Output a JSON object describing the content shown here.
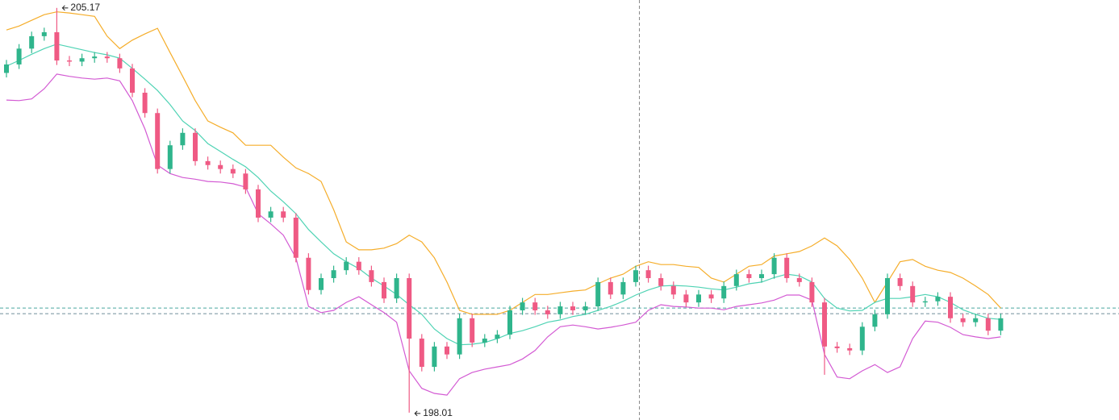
{
  "chart_data": {
    "type": "candlestick",
    "ylim": [
      197.88,
      205.31
    ],
    "up_color": "#2fb58c",
    "down_color": "#ef5a84",
    "open": [
      204.02,
      204.17,
      204.45,
      204.67,
      204.74,
      204.24,
      204.22,
      204.28,
      204.31,
      204.28,
      204.1,
      203.67,
      203.31,
      202.32,
      202.74,
      202.96,
      202.46,
      202.39,
      202.32,
      202.24,
      201.96,
      201.46,
      201.57,
      201.46,
      200.75,
      200.18,
      200.39,
      200.53,
      200.68,
      200.53,
      200.32,
      200.03,
      200.39,
      199.32,
      198.82,
      199.18,
      199.04,
      199.68,
      199.25,
      199.32,
      199.39,
      199.82,
      199.96,
      199.82,
      199.75,
      199.89,
      199.82,
      199.89,
      200.32,
      200.1,
      200.32,
      200.53,
      200.39,
      200.25,
      200.1,
      199.96,
      200.1,
      200.03,
      200.25,
      200.46,
      200.39,
      200.46,
      200.75,
      200.39,
      200.32,
      199.96,
      199.18,
      199.15,
      199.11,
      199.53,
      199.75,
      200.39,
      200.25,
      199.96,
      199.98,
      200.06,
      199.68,
      199.61,
      199.68,
      199.46
    ],
    "high": [
      204.25,
      204.53,
      204.75,
      204.82,
      205.17,
      204.32,
      204.36,
      204.39,
      204.39,
      204.36,
      204.18,
      203.75,
      203.39,
      202.82,
      203.04,
      203.04,
      202.54,
      202.47,
      202.4,
      202.32,
      202.04,
      201.65,
      201.65,
      201.54,
      200.83,
      200.47,
      200.61,
      200.76,
      200.76,
      200.61,
      200.4,
      200.47,
      200.47,
      199.4,
      199.26,
      199.26,
      199.76,
      199.76,
      199.4,
      199.47,
      199.9,
      200.04,
      200.04,
      199.9,
      199.97,
      199.97,
      199.97,
      200.4,
      200.4,
      200.4,
      200.61,
      200.61,
      200.47,
      200.33,
      200.18,
      200.18,
      200.18,
      200.33,
      200.54,
      200.54,
      200.54,
      200.83,
      200.83,
      200.47,
      200.4,
      200.04,
      199.26,
      199.23,
      199.61,
      199.83,
      200.47,
      200.47,
      200.33,
      200.06,
      200.14,
      200.14,
      199.76,
      199.76,
      199.76,
      199.76
    ],
    "low": [
      203.94,
      204.09,
      204.37,
      204.59,
      204.16,
      204.14,
      204.14,
      204.2,
      204.2,
      204.02,
      203.59,
      203.23,
      202.24,
      202.24,
      202.66,
      202.38,
      202.31,
      202.24,
      202.16,
      201.88,
      201.38,
      201.38,
      201.38,
      200.67,
      200.1,
      200.1,
      200.31,
      200.45,
      200.45,
      200.24,
      199.95,
      199.95,
      198.01,
      198.74,
      198.74,
      198.96,
      198.96,
      199.17,
      199.17,
      199.24,
      199.31,
      199.74,
      199.74,
      199.67,
      199.67,
      199.74,
      199.74,
      199.81,
      200.02,
      200.02,
      200.24,
      200.31,
      200.17,
      200.02,
      199.88,
      199.88,
      199.95,
      199.95,
      200.17,
      200.31,
      200.31,
      200.38,
      200.31,
      200.24,
      199.88,
      198.68,
      199.07,
      199.03,
      199.03,
      199.45,
      199.67,
      200.17,
      199.88,
      199.88,
      199.9,
      199.6,
      199.53,
      199.53,
      199.38,
      199.38
    ],
    "close": [
      204.17,
      204.45,
      204.67,
      204.74,
      204.24,
      204.22,
      204.28,
      204.31,
      204.28,
      204.1,
      203.67,
      203.31,
      202.32,
      202.74,
      202.96,
      202.46,
      202.39,
      202.32,
      202.24,
      201.96,
      201.46,
      201.57,
      201.46,
      200.75,
      200.18,
      200.39,
      200.53,
      200.68,
      200.53,
      200.32,
      200.03,
      200.39,
      199.32,
      198.82,
      199.18,
      199.04,
      199.68,
      199.25,
      199.32,
      199.39,
      199.82,
      199.96,
      199.82,
      199.75,
      199.89,
      199.82,
      199.89,
      200.32,
      200.1,
      200.32,
      200.53,
      200.39,
      200.25,
      200.1,
      199.96,
      200.1,
      200.03,
      200.25,
      200.46,
      200.39,
      200.46,
      200.75,
      200.39,
      200.32,
      199.96,
      199.18,
      199.15,
      199.11,
      199.53,
      199.75,
      200.39,
      200.25,
      199.96,
      199.98,
      200.06,
      199.68,
      199.61,
      199.68,
      199.46,
      199.68
    ],
    "overlays": [
      {
        "color": "#f5ad2a",
        "values": [
          204.78,
          204.85,
          204.95,
          205.05,
          205.1,
          205.08,
          205.05,
          205.02,
          204.67,
          204.45,
          204.6,
          204.71,
          204.81,
          204.38,
          203.96,
          203.53,
          203.17,
          203.06,
          202.96,
          202.74,
          202.74,
          202.74,
          202.53,
          202.34,
          202.24,
          202.1,
          201.6,
          201.03,
          200.89,
          200.89,
          200.92,
          201.0,
          201.15,
          201.03,
          200.75,
          200.32,
          199.82,
          199.75,
          199.75,
          199.75,
          199.82,
          199.96,
          200.1,
          200.1,
          200.13,
          200.16,
          200.18,
          200.29,
          200.39,
          200.46,
          200.6,
          200.68,
          200.63,
          200.63,
          200.6,
          200.58,
          200.39,
          200.32,
          200.46,
          200.6,
          200.63,
          200.78,
          200.82,
          200.86,
          200.96,
          201.1,
          200.96,
          200.72,
          200.39,
          199.96,
          200.32,
          200.68,
          200.72,
          200.6,
          200.53,
          200.49,
          200.39,
          200.25,
          200.1,
          199.86
        ]
      },
      {
        "color": "#4fd3b4",
        "values": [
          204.14,
          204.24,
          204.35,
          204.45,
          204.53,
          204.48,
          204.43,
          204.38,
          204.34,
          204.28,
          204.1,
          203.91,
          203.71,
          203.46,
          203.17,
          203.0,
          202.77,
          202.63,
          202.49,
          202.36,
          202.17,
          201.93,
          201.74,
          201.53,
          201.25,
          201.03,
          200.82,
          200.68,
          200.56,
          200.39,
          200.25,
          200.1,
          199.92,
          199.75,
          199.49,
          199.32,
          199.21,
          199.22,
          199.25,
          199.32,
          199.41,
          199.46,
          199.53,
          199.61,
          199.65,
          199.71,
          199.75,
          199.82,
          199.89,
          199.98,
          200.09,
          200.18,
          200.25,
          200.26,
          200.25,
          200.23,
          200.2,
          200.18,
          200.23,
          200.29,
          200.32,
          200.4,
          200.46,
          200.43,
          200.32,
          200.03,
          199.86,
          199.81,
          199.82,
          199.96,
          200.03,
          200.03,
          200.06,
          200.1,
          200.06,
          199.96,
          199.83,
          199.75,
          199.68,
          199.66
        ]
      },
      {
        "color": "#d35ad3",
        "values": [
          203.54,
          203.53,
          203.56,
          203.74,
          204.0,
          203.96,
          203.93,
          203.91,
          203.93,
          203.88,
          203.53,
          203.03,
          202.39,
          202.24,
          202.17,
          202.14,
          202.1,
          202.09,
          202.06,
          202.0,
          201.53,
          201.35,
          201.15,
          200.75,
          199.89,
          199.78,
          199.82,
          199.96,
          200.06,
          199.92,
          199.78,
          199.61,
          198.75,
          198.44,
          198.35,
          198.32,
          198.61,
          198.72,
          198.78,
          198.82,
          198.86,
          198.96,
          199.11,
          199.35,
          199.53,
          199.56,
          199.53,
          199.49,
          199.52,
          199.56,
          199.61,
          199.82,
          199.92,
          199.89,
          199.88,
          199.86,
          199.86,
          199.83,
          199.89,
          199.92,
          199.95,
          200.0,
          200.09,
          200.09,
          200.0,
          199.04,
          198.64,
          198.61,
          198.75,
          198.86,
          198.72,
          198.82,
          199.32,
          199.63,
          199.61,
          199.52,
          199.39,
          199.35,
          199.32,
          199.35
        ]
      }
    ],
    "price_lines": [
      {
        "value": 199.86,
        "color": "#4aa7a0"
      },
      {
        "value": 199.76,
        "color": "#6f8f9a"
      }
    ],
    "high_marker": 205.17,
    "low_marker": 198.01
  }
}
